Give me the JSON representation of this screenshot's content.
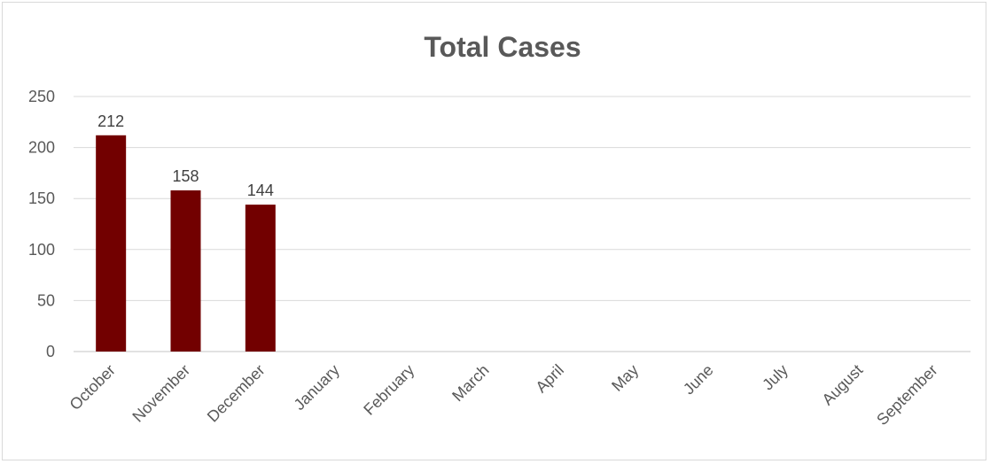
{
  "chart_data": {
    "type": "bar",
    "title": "Total Cases",
    "categories": [
      "October",
      "November",
      "December",
      "January",
      "February",
      "March",
      "April",
      "May",
      "June",
      "July",
      "August",
      "September"
    ],
    "values": [
      212,
      158,
      144,
      null,
      null,
      null,
      null,
      null,
      null,
      null,
      null,
      null
    ],
    "data_labels": [
      "212",
      "158",
      "144",
      "",
      "",
      "",
      "",
      "",
      "",
      "",
      "",
      ""
    ],
    "yticks": [
      "0",
      "50",
      "100",
      "150",
      "200",
      "250"
    ],
    "ylim": [
      0,
      250
    ],
    "grid": true,
    "legend": "none",
    "bar_color": "#720000"
  }
}
